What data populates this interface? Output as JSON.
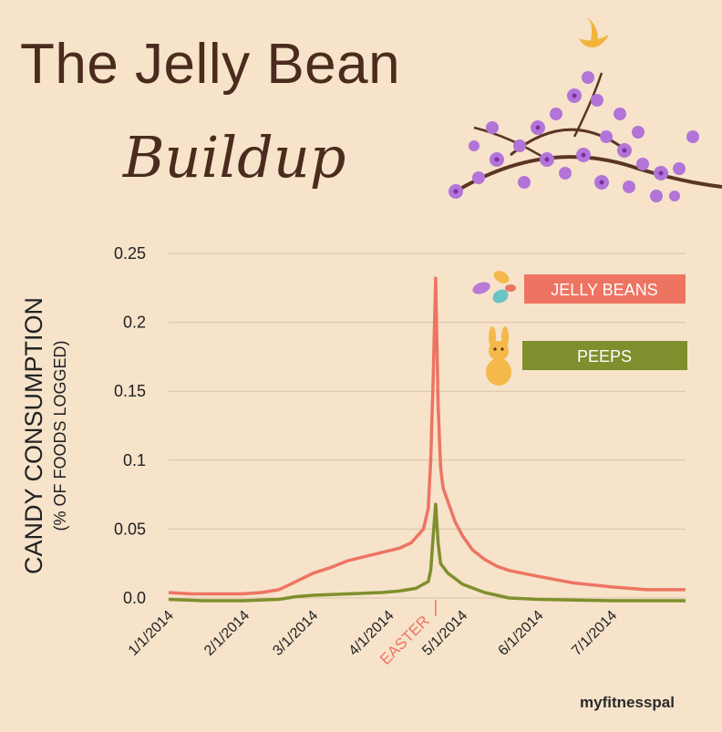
{
  "title": "The Jelly Bean",
  "subtitle": "Buildup",
  "brand": "myfitnesspal",
  "colors": {
    "jelly_beans": "#ee7462",
    "peeps": "#7f8f2d",
    "background": "#f6e3ca",
    "title": "#4a2b1d"
  },
  "icons": {
    "bird": "bird-icon",
    "branch": "cherry-blossom-branch-icon",
    "jelly_beans": "jelly-bean-icon",
    "peeps": "bunny-icon"
  },
  "chart_data": {
    "type": "line",
    "ylabel": "CANDY CONSUMPTION",
    "ylabel_sub": "(% OF FOODS LOGGED)",
    "ylim": [
      0,
      0.25
    ],
    "yticks": [
      "0.0",
      "0.05",
      "0.1",
      "0.15",
      "0.2",
      "0.25"
    ],
    "xlim": [
      "2014-01-01",
      "2014-07-31"
    ],
    "xticks": [
      "1/1/2014",
      "2/1/2014",
      "3/1/2014",
      "4/1/2014",
      "5/1/2014",
      "6/1/2014",
      "7/1/2014"
    ],
    "grid": true,
    "legend": "right",
    "annotations": [
      {
        "text": "EASTER",
        "x": "2014-04-20"
      }
    ],
    "series": [
      {
        "name": "JELLY BEANS",
        "points": [
          [
            "2014-01-01",
            0.004
          ],
          [
            "2014-01-10",
            0.003
          ],
          [
            "2014-01-20",
            0.003
          ],
          [
            "2014-01-31",
            0.003
          ],
          [
            "2014-02-08",
            0.004
          ],
          [
            "2014-02-15",
            0.006
          ],
          [
            "2014-02-22",
            0.012
          ],
          [
            "2014-03-01",
            0.018
          ],
          [
            "2014-03-08",
            0.022
          ],
          [
            "2014-03-15",
            0.027
          ],
          [
            "2014-03-22",
            0.03
          ],
          [
            "2014-03-29",
            0.033
          ],
          [
            "2014-04-05",
            0.036
          ],
          [
            "2014-04-10",
            0.04
          ],
          [
            "2014-04-15",
            0.05
          ],
          [
            "2014-04-17",
            0.065
          ],
          [
            "2014-04-18",
            0.1
          ],
          [
            "2014-04-19",
            0.16
          ],
          [
            "2014-04-20",
            0.232
          ],
          [
            "2014-04-21",
            0.14
          ],
          [
            "2014-04-22",
            0.095
          ],
          [
            "2014-04-23",
            0.08
          ],
          [
            "2014-04-25",
            0.07
          ],
          [
            "2014-04-28",
            0.055
          ],
          [
            "2014-05-01",
            0.045
          ],
          [
            "2014-05-05",
            0.035
          ],
          [
            "2014-05-10",
            0.028
          ],
          [
            "2014-05-15",
            0.023
          ],
          [
            "2014-05-20",
            0.02
          ],
          [
            "2014-05-31",
            0.016
          ],
          [
            "2014-06-15",
            0.011
          ],
          [
            "2014-07-01",
            0.008
          ],
          [
            "2014-07-15",
            0.006
          ],
          [
            "2014-07-31",
            0.006
          ]
        ]
      },
      {
        "name": "PEEPS",
        "points": [
          [
            "2014-01-01",
            -0.001
          ],
          [
            "2014-01-15",
            -0.002
          ],
          [
            "2014-01-31",
            -0.002
          ],
          [
            "2014-02-15",
            -0.001
          ],
          [
            "2014-02-22",
            0.001
          ],
          [
            "2014-03-01",
            0.002
          ],
          [
            "2014-03-15",
            0.003
          ],
          [
            "2014-03-29",
            0.004
          ],
          [
            "2014-04-05",
            0.005
          ],
          [
            "2014-04-12",
            0.007
          ],
          [
            "2014-04-17",
            0.012
          ],
          [
            "2014-04-18",
            0.02
          ],
          [
            "2014-04-19",
            0.045
          ],
          [
            "2014-04-20",
            0.068
          ],
          [
            "2014-04-21",
            0.04
          ],
          [
            "2014-04-22",
            0.025
          ],
          [
            "2014-04-25",
            0.018
          ],
          [
            "2014-05-01",
            0.01
          ],
          [
            "2014-05-10",
            0.004
          ],
          [
            "2014-05-20",
            0.0
          ],
          [
            "2014-06-01",
            -0.001
          ],
          [
            "2014-07-01",
            -0.002
          ],
          [
            "2014-07-31",
            -0.002
          ]
        ]
      }
    ]
  }
}
